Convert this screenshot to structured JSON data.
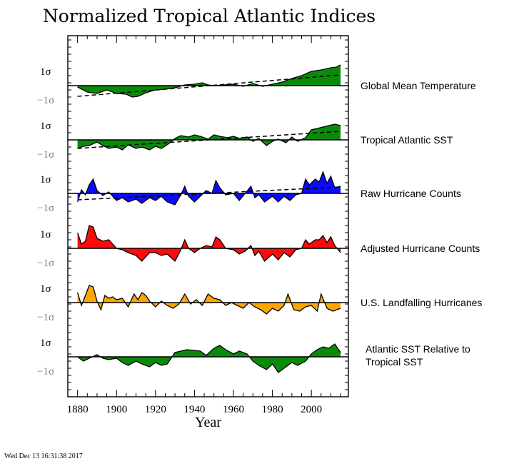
{
  "title": "Normalized Tropical Atlantic Indices",
  "timestamp": "Wed Dec 13 16:31:38 2017",
  "chart_data": {
    "type": "area",
    "xlabel": "Year",
    "xlim": [
      1875,
      2019
    ],
    "xticks": [
      1880,
      1900,
      1920,
      1940,
      1960,
      1980,
      2000
    ],
    "yticks_pos_label": "1σ",
    "yticks_neg_label": "−1σ",
    "colors": {
      "green": "#0a8a0a",
      "blue": "#0a0aff",
      "red": "#ff0a0a",
      "orange": "#ffa500",
      "neg_tick": "#a07070"
    },
    "series": [
      {
        "name": "Global Mean Temperature",
        "color": "#0a8a0a",
        "trend": [
          [
            1880,
            -0.75
          ],
          [
            2015,
            0.75
          ]
        ],
        "x": [
          1880,
          1885,
          1890,
          1895,
          1900,
          1905,
          1908,
          1911,
          1915,
          1920,
          1925,
          1930,
          1935,
          1940,
          1944,
          1947,
          1950,
          1955,
          1960,
          1965,
          1970,
          1975,
          1980,
          1985,
          1990,
          1995,
          2000,
          2005,
          2010,
          2013,
          2015
        ],
        "y": [
          -0.1,
          -0.45,
          -0.55,
          -0.3,
          -0.55,
          -0.6,
          -0.8,
          -0.75,
          -0.5,
          -0.3,
          -0.25,
          -0.15,
          0.05,
          0.1,
          0.2,
          0.05,
          0.0,
          0.05,
          0.1,
          -0.05,
          0.15,
          -0.05,
          0.1,
          0.25,
          0.5,
          0.7,
          1.0,
          1.1,
          1.25,
          1.3,
          1.45
        ]
      },
      {
        "name": "Tropical Atlantic SST",
        "color": "#0a8a0a",
        "trend": [
          [
            1880,
            -0.6
          ],
          [
            2015,
            0.6
          ]
        ],
        "x": [
          1880,
          1883,
          1886,
          1890,
          1893,
          1896,
          1900,
          1903,
          1906,
          1910,
          1913,
          1917,
          1920,
          1923,
          1927,
          1930,
          1933,
          1937,
          1940,
          1943,
          1947,
          1950,
          1953,
          1957,
          1960,
          1963,
          1967,
          1970,
          1973,
          1977,
          1980,
          1983,
          1987,
          1990,
          1993,
          1997,
          2000,
          2003,
          2006,
          2009,
          2012,
          2015
        ],
        "y": [
          -0.6,
          -0.45,
          -0.4,
          -0.15,
          -0.4,
          -0.6,
          -0.5,
          -0.7,
          -0.35,
          -0.6,
          -0.5,
          -0.7,
          -0.45,
          -0.6,
          -0.25,
          0.1,
          0.3,
          0.2,
          0.35,
          0.25,
          0.05,
          0.35,
          0.25,
          0.15,
          0.25,
          0.1,
          0.2,
          -0.1,
          0.1,
          -0.4,
          -0.1,
          0.05,
          -0.2,
          0.2,
          -0.1,
          0.15,
          0.7,
          0.8,
          0.9,
          1.0,
          1.1,
          1.0
        ]
      },
      {
        "name": "Raw Hurricane Counts",
        "color": "#0a0aff",
        "trend": [
          [
            1880,
            -0.45
          ],
          [
            2015,
            0.45
          ]
        ],
        "x": [
          1880,
          1882,
          1884,
          1886,
          1888,
          1890,
          1893,
          1896,
          1900,
          1903,
          1906,
          1910,
          1913,
          1917,
          1920,
          1923,
          1926,
          1930,
          1933,
          1935,
          1937,
          1940,
          1943,
          1946,
          1949,
          1951,
          1953,
          1956,
          1960,
          1963,
          1966,
          1969,
          1971,
          1973,
          1976,
          1980,
          1983,
          1986,
          1989,
          1992,
          1995,
          1997,
          1999,
          2002,
          2004,
          2006,
          2008,
          2010,
          2012,
          2015
        ],
        "y": [
          -0.6,
          0.25,
          -0.1,
          0.6,
          1.0,
          0.2,
          -0.15,
          0.1,
          -0.5,
          -0.3,
          -0.6,
          -0.4,
          -0.7,
          -0.3,
          -0.5,
          -0.2,
          -0.6,
          -0.8,
          -0.1,
          0.5,
          -0.2,
          -0.6,
          -0.2,
          0.2,
          0.0,
          0.9,
          0.4,
          -0.1,
          0.0,
          -0.5,
          0.0,
          0.5,
          -0.3,
          -0.1,
          -0.6,
          -0.2,
          -0.6,
          -0.2,
          -0.5,
          -0.1,
          0.0,
          1.0,
          0.6,
          1.0,
          0.8,
          1.5,
          0.7,
          1.2,
          0.4,
          0.5
        ]
      },
      {
        "name": "Adjusted Hurricane Counts",
        "color": "#ff0a0a",
        "x": [
          1880,
          1882,
          1884,
          1886,
          1888,
          1890,
          1893,
          1896,
          1900,
          1903,
          1906,
          1910,
          1913,
          1917,
          1920,
          1923,
          1926,
          1930,
          1933,
          1935,
          1937,
          1940,
          1943,
          1946,
          1949,
          1951,
          1953,
          1956,
          1960,
          1963,
          1966,
          1969,
          1971,
          1973,
          1976,
          1980,
          1983,
          1986,
          1989,
          1992,
          1995,
          1997,
          1999,
          2002,
          2004,
          2006,
          2008,
          2010,
          2012,
          2015
        ],
        "y": [
          1.1,
          0.3,
          0.5,
          1.6,
          1.5,
          0.7,
          0.5,
          0.6,
          0.0,
          -0.1,
          -0.3,
          -0.5,
          -0.9,
          -0.3,
          -0.3,
          -0.5,
          -0.4,
          -0.9,
          -0.1,
          0.6,
          0.0,
          -0.3,
          0.0,
          0.2,
          0.1,
          0.8,
          0.6,
          0.0,
          -0.1,
          -0.4,
          -0.2,
          0.2,
          -0.5,
          -0.2,
          -0.9,
          -0.4,
          -0.8,
          -0.3,
          -0.6,
          -0.1,
          0.0,
          0.6,
          0.3,
          0.6,
          0.6,
          0.9,
          0.4,
          0.8,
          0.2,
          -0.3
        ]
      },
      {
        "name": "U.S. Landfalling Hurricanes",
        "color": "#ffa500",
        "x": [
          1880,
          1882,
          1884,
          1886,
          1888,
          1890,
          1892,
          1894,
          1896,
          1898,
          1900,
          1903,
          1906,
          1909,
          1911,
          1913,
          1915,
          1917,
          1920,
          1923,
          1926,
          1929,
          1932,
          1935,
          1938,
          1941,
          1944,
          1947,
          1950,
          1953,
          1956,
          1959,
          1962,
          1965,
          1968,
          1971,
          1974,
          1977,
          1980,
          1983,
          1986,
          1988,
          1991,
          1994,
          1997,
          2000,
          2003,
          2005,
          2008,
          2011,
          2015
        ],
        "y": [
          0.7,
          -0.2,
          0.5,
          1.2,
          1.1,
          0.1,
          -0.5,
          0.5,
          0.3,
          0.4,
          0.2,
          0.3,
          -0.3,
          0.6,
          0.2,
          0.7,
          0.5,
          0.1,
          -0.3,
          0.1,
          -0.2,
          -0.4,
          -0.1,
          0.6,
          -0.1,
          0.2,
          -0.2,
          0.6,
          0.3,
          0.2,
          -0.2,
          0.0,
          -0.2,
          -0.4,
          0.0,
          -0.3,
          -0.5,
          -0.8,
          -0.4,
          -0.6,
          -0.2,
          0.6,
          -0.5,
          -0.6,
          -0.3,
          -0.2,
          -0.6,
          0.6,
          -0.4,
          -0.6,
          -0.4
        ]
      },
      {
        "name": "Atlantic SST Relative to Tropical SST",
        "color": "#0a8a0a",
        "x": [
          1880,
          1883,
          1886,
          1890,
          1893,
          1896,
          1900,
          1903,
          1906,
          1910,
          1913,
          1917,
          1920,
          1923,
          1926,
          1930,
          1933,
          1936,
          1940,
          1943,
          1946,
          1950,
          1953,
          1956,
          1960,
          1963,
          1967,
          1970,
          1973,
          1977,
          1980,
          1983,
          1987,
          1990,
          1993,
          1997,
          2000,
          2003,
          2006,
          2009,
          2012,
          2015
        ],
        "y": [
          0.0,
          -0.3,
          -0.1,
          0.15,
          -0.1,
          -0.2,
          -0.1,
          -0.4,
          -0.6,
          -0.3,
          -0.5,
          -0.7,
          -0.4,
          -0.6,
          -0.5,
          0.3,
          0.4,
          0.5,
          0.45,
          0.4,
          0.1,
          0.6,
          0.8,
          0.5,
          0.2,
          0.4,
          0.2,
          -0.3,
          -0.6,
          -0.9,
          -0.5,
          -1.1,
          -0.7,
          -0.4,
          -0.6,
          -0.3,
          0.2,
          0.5,
          0.7,
          0.6,
          0.9,
          0.3
        ]
      }
    ]
  }
}
